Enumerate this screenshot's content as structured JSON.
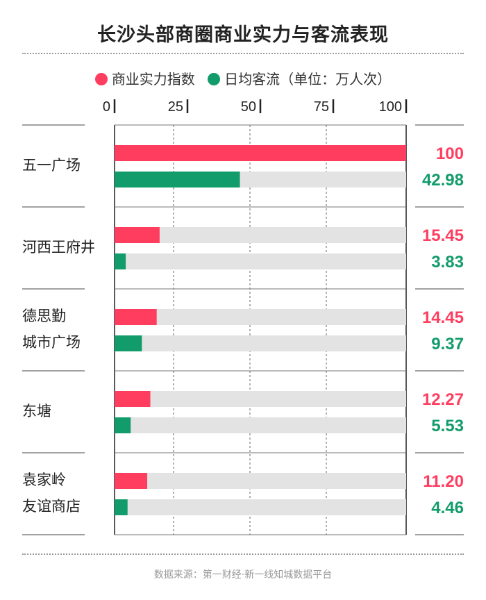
{
  "title": "长沙头部商圈商业实力与客流表现",
  "legend": {
    "commercial": "商业实力指数",
    "traffic": "日均客流（单位：万人次）"
  },
  "colors": {
    "commercial": "#ff3d5f",
    "traffic": "#129c6b",
    "track": "#e3e3e3"
  },
  "chart_data": {
    "type": "bar",
    "orientation": "horizontal",
    "xlim": [
      0,
      105
    ],
    "xticks": [
      "0",
      "25",
      "50",
      "75",
      "100"
    ],
    "grid": true,
    "categories": [
      [
        "五一广场"
      ],
      [
        "河西王府井"
      ],
      [
        "德思勤",
        "城市广场"
      ],
      [
        "东塘"
      ],
      [
        "袁家岭",
        "友谊商店"
      ]
    ],
    "series": [
      {
        "name": "商业实力指数",
        "values": [
          100,
          15.45,
          14.45,
          12.27,
          11.2
        ],
        "labels": [
          "100",
          "15.45",
          "14.45",
          "12.27",
          "11.20"
        ]
      },
      {
        "name": "日均客流（单位：万人次）",
        "values": [
          42.98,
          3.83,
          9.37,
          5.53,
          4.46
        ],
        "labels": [
          "42.98",
          "3.83",
          "9.37",
          "5.53",
          "4.46"
        ]
      }
    ]
  },
  "footer": "数据来源：第一财经·新一线知城数据平台"
}
